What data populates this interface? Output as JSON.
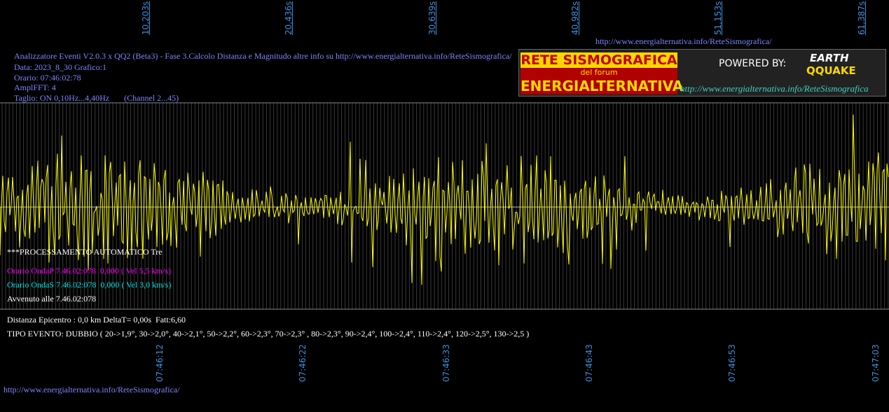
{
  "header": {
    "title": "Analizzatore Eventi V2.0.3 x QQ2 (Beta3) - Fase 3.Calcolo Distanza e Magnitudo altre info su http://www.energialternativa.info/ReteSismografica/",
    "data": "Data: 2023_8_30 Grafico:1",
    "orario": "Orario: 07:46:02:78",
    "ampl": "AmplFFT: 4",
    "taglio": "Taglio: ON 0,10Hz...4,40Hz       (Channel 2...45)"
  },
  "top_url": "http://www.energialternativa.info/ReteSismografica/",
  "seconds_labels": [
    "10,203s",
    "20,436s",
    "30,639s",
    "40,982s",
    "51,153s",
    "61,387s"
  ],
  "time_labels": [
    "07:46:12",
    "07:46:22",
    "07:46:33",
    "07:46:43",
    "07:46:53",
    "07:47:03"
  ],
  "logo": {
    "title": "RETE SISMOGRAFICA",
    "sub": "del forum",
    "name": "ENERGIALTERNATIVA",
    "powered": "POWERED BY:",
    "earth": "EARTH",
    "quake": "QQUAKE",
    "url": "http://www.energialternativa.info/ReteSismografica"
  },
  "info": {
    "processing": "***PROCESSAMENTO AUTOMATICO Tre",
    "onda_p": "Orario OndaP 7.46.02:078  0,000 ( Vel 5,5 km/s)",
    "onda_s": "Orario OndaS 7.46.02:078  0,000 ( Vel 3,0 km/s)",
    "event_time": "Avvenuto alle 7.46.02:078",
    "distance": "Distanza Epicentro : 0,0 km DeltaT= 0,00s  Fatt:6,60",
    "event_type": "TIPO EVENTO: DUBBIO ( 20->1,9°, 30->2,0°, 40->2,1°, 50->2,2°, 60->2,3°, 70->2,3° , 80->2,3°, 90->2,4°, 100->2,4°, 110->2,4°, 120->2,5°, 130->2,5 )"
  },
  "footer_url": "http://www.energialternativa.info/ReteSismografica/"
}
